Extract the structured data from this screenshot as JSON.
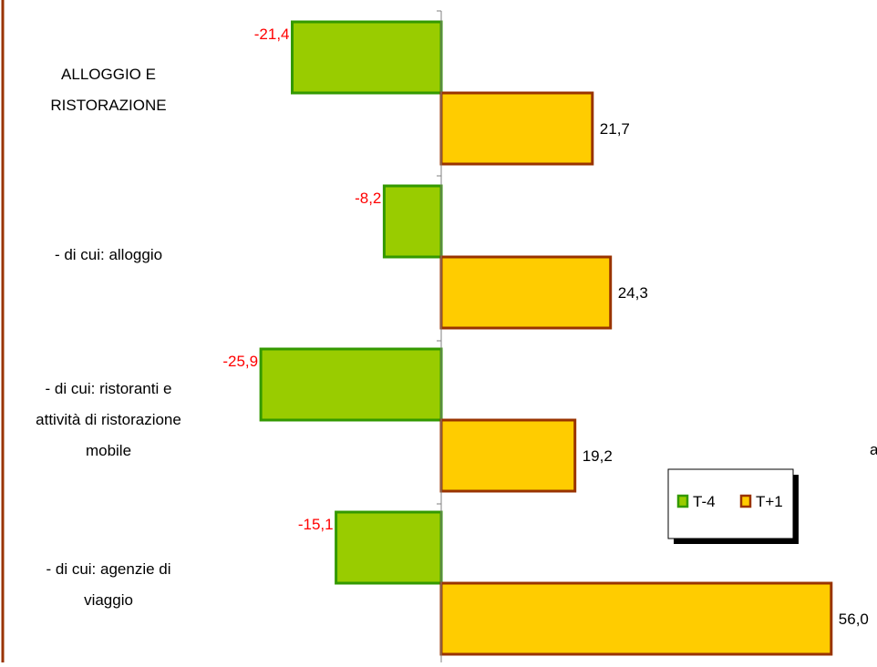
{
  "chart_data": {
    "type": "bar",
    "orientation": "horizontal",
    "categories": [
      [
        "ALLOGGIO E",
        "RISTORAZIONE"
      ],
      [
        "- di cui: alloggio"
      ],
      [
        "- di cui: ristoranti e",
        "attività di ristorazione",
        "mobile"
      ],
      [
        "- di cui: agenzie di",
        "viaggio"
      ]
    ],
    "series": [
      {
        "name": "T-4",
        "values": [
          -21.4,
          -8.2,
          -25.9,
          -15.1
        ],
        "labels": [
          "-21,4",
          "-8,2",
          "-25,9",
          "-15,1"
        ],
        "fill": "#99CC00",
        "stroke": "#339900",
        "label_color": "#FF0000"
      },
      {
        "name": "T+1",
        "values": [
          21.7,
          24.3,
          19.2,
          56.0
        ],
        "labels": [
          "21,7",
          "24,3",
          "19,2",
          "56,0"
        ],
        "fill": "#FFCC00",
        "stroke": "#993300",
        "label_color": "#000000"
      }
    ],
    "xlim": [
      -30,
      60
    ],
    "legend": "right",
    "grid": false,
    "cut_off_text": "a"
  },
  "colors": {
    "frame": "#993300",
    "axis": "#808080"
  }
}
